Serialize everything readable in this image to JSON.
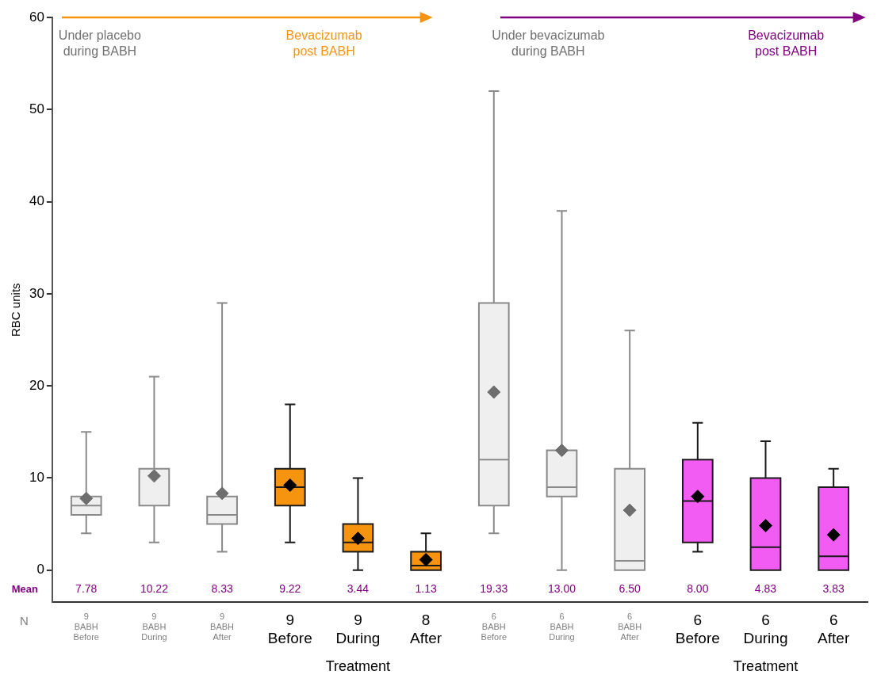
{
  "chart_data": {
    "type": "box",
    "ylabel": "RBC units",
    "categories": [
      "9\nBABH\nBefore",
      "9\nBABH\nDuring",
      "9\nBABH\nAfter",
      "9\nBefore",
      "9\nDuring",
      "8\nAfter",
      "6\nBABH\nBefore",
      "6\nBABH\nDuring",
      "6\nBABH\nAfter",
      "6\nBefore",
      "6\nDuring",
      "6\nAfter"
    ],
    "boxes": [
      {
        "low": 4,
        "q1": 6,
        "median": 7,
        "q3": 8,
        "high": 15,
        "mean": 7.78
      },
      {
        "low": 3,
        "q1": 7,
        "median": 7,
        "q3": 11,
        "high": 21,
        "mean": 10.22
      },
      {
        "low": 2,
        "q1": 5,
        "median": 6,
        "q3": 8,
        "high": 29,
        "mean": 8.33
      },
      {
        "low": 3,
        "q1": 7,
        "median": 9,
        "q3": 11,
        "high": 18,
        "mean": 9.22
      },
      {
        "low": 0,
        "q1": 2,
        "median": 3,
        "q3": 5,
        "high": 10,
        "mean": 3.44
      },
      {
        "low": 0,
        "q1": 0,
        "median": 0.5,
        "q3": 2,
        "high": 4,
        "mean": 1.13
      },
      {
        "low": 4,
        "q1": 7,
        "median": 12,
        "q3": 29,
        "high": 52,
        "mean": 19.33
      },
      {
        "low": 0,
        "q1": 8,
        "median": 9,
        "q3": 13,
        "high": 39,
        "mean": 13
      },
      {
        "low": 0,
        "q1": 0,
        "median": 1,
        "q3": 11,
        "high": 26,
        "mean": 6.5
      },
      {
        "low": 2,
        "q1": 3,
        "median": 7.5,
        "q3": 12,
        "high": 16,
        "mean": 8
      },
      {
        "low": 0,
        "q1": 0,
        "median": 2.5,
        "q3": 10,
        "high": 14,
        "mean": 4.83
      },
      {
        "low": 0,
        "q1": 0,
        "median": 1.5,
        "q3": 9,
        "high": 11,
        "mean": 3.83
      }
    ],
    "colors": [
      "#efefef",
      "#efefef",
      "#efefef",
      "#f7940f",
      "#f7940f",
      "#f7940f",
      "#efefef",
      "#efefef",
      "#efefef",
      "#f35cf3",
      "#f35cf3",
      "#f35cf3"
    ],
    "value_labels": [
      "7.78",
      "10.22",
      "8.33",
      "9.22",
      "3.44",
      "1.13",
      "19.33",
      "13.00",
      "6.50",
      "8.00",
      "4.83",
      "3.83"
    ],
    "ylim": [
      -3.5,
      60
    ],
    "yticks": [
      0,
      10,
      20,
      30,
      40,
      50,
      60
    ],
    "annotations": [
      "Under placebo\nduring BABH",
      "Bevacizumab\npost BABH",
      "Under bevacizumab\nduring BABH",
      "Bevacizumab\npost BABH",
      "Mean",
      "N",
      "Treatment",
      "Treatment"
    ]
  }
}
